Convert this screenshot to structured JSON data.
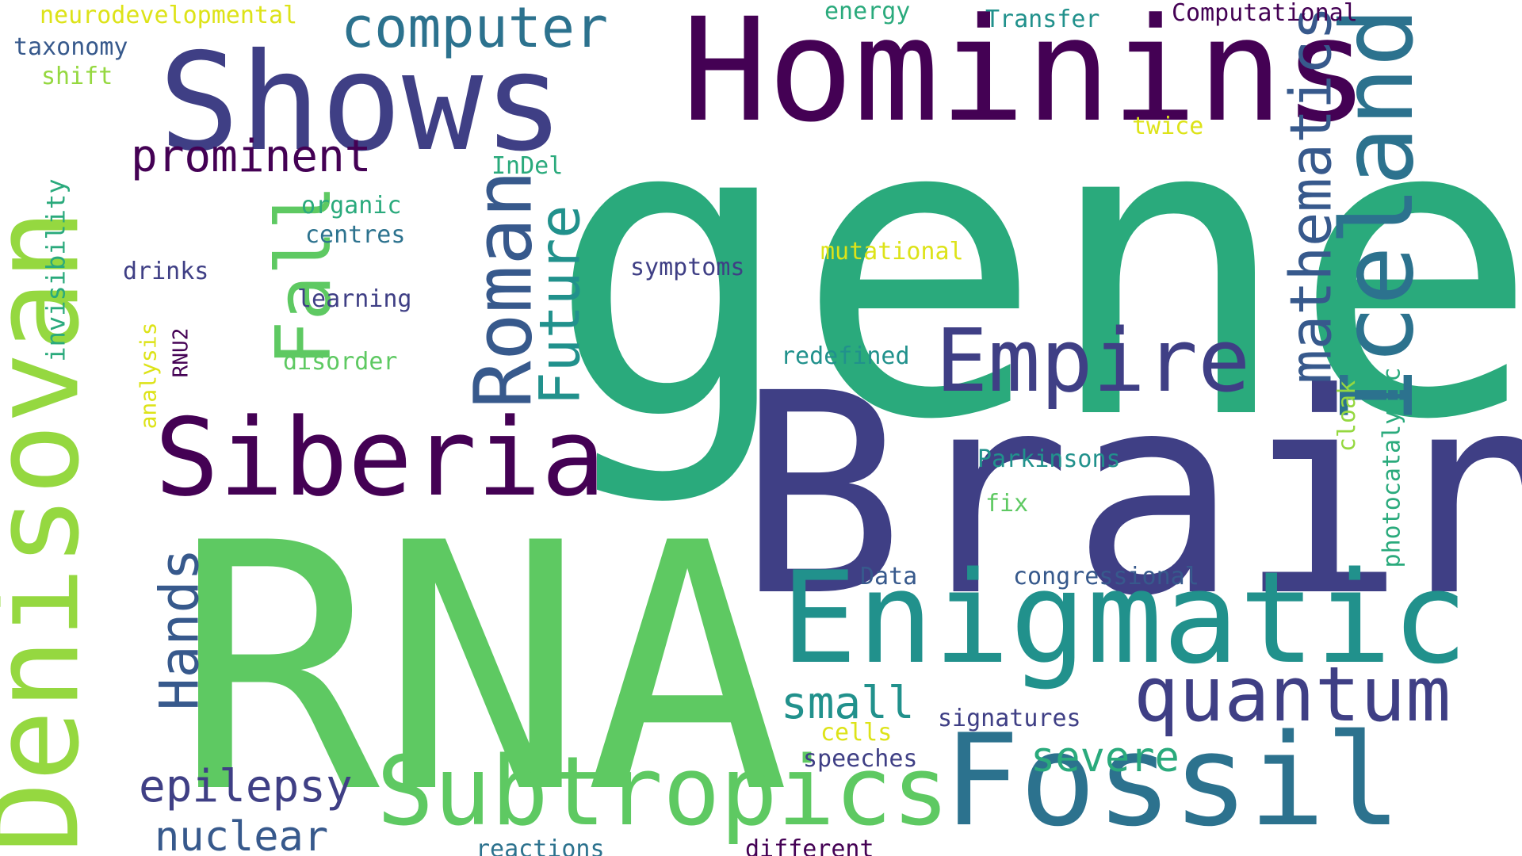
{
  "colors": {
    "background": "#ffffff",
    "dark_purple": "#440154",
    "indigo": "#3f3f85",
    "slate_blue": "#37598c",
    "steel_blue": "#2c728e",
    "teal": "#21918c",
    "green_teal": "#2aaa7c",
    "green": "#5ec962",
    "lime": "#95d840",
    "yellow": "#dde318"
  },
  "words": {
    "gene": "gene",
    "rna": "RNA",
    "brain": "Brain",
    "hominins": "Hominins",
    "shows": "Shows",
    "enigmatic": "Enigmatic",
    "fossil": "Fossil",
    "siberia": "Siberia",
    "subtropics": "Subtropics",
    "empire": "Empire",
    "quantum": "quantum",
    "computer": "computer",
    "prominent": "prominent",
    "epilepsy": "epilepsy",
    "nuclear": "nuclear",
    "small": "small",
    "severe": "severe",
    "denisovan": "Denisovan",
    "iceland": "Iceland",
    "mathematics": "mathematics",
    "roman": "Roman",
    "fall": "Fall",
    "future": "Future",
    "hands": "Hands",
    "invisibility": "invisibility",
    "analysis": "analysis",
    "rnu2": "RNU2",
    "cloak": "cloak",
    "photocatalytic": "photocatalytic",
    "neurodevelopmental": "neurodevelopmental",
    "taxonomy": "taxonomy",
    "shift": "shift",
    "energy": "energy",
    "transfer": "Transfer",
    "computational": "Computational",
    "twice": "twice",
    "indel": "InDel",
    "organic": "organic",
    "centres": "centres",
    "drinks": "drinks",
    "symptoms": "symptoms",
    "mutational": "mutational",
    "learning": "learning",
    "redefined": "redefined",
    "disorder": "disorder",
    "parkinsons": "Parkinsons",
    "fix": "fix",
    "data": "Data",
    "congressional": "congressional",
    "signatures": "signatures",
    "cells": "cells",
    "speeches": "speeches",
    "reactions": "reactions",
    "different": "different"
  }
}
